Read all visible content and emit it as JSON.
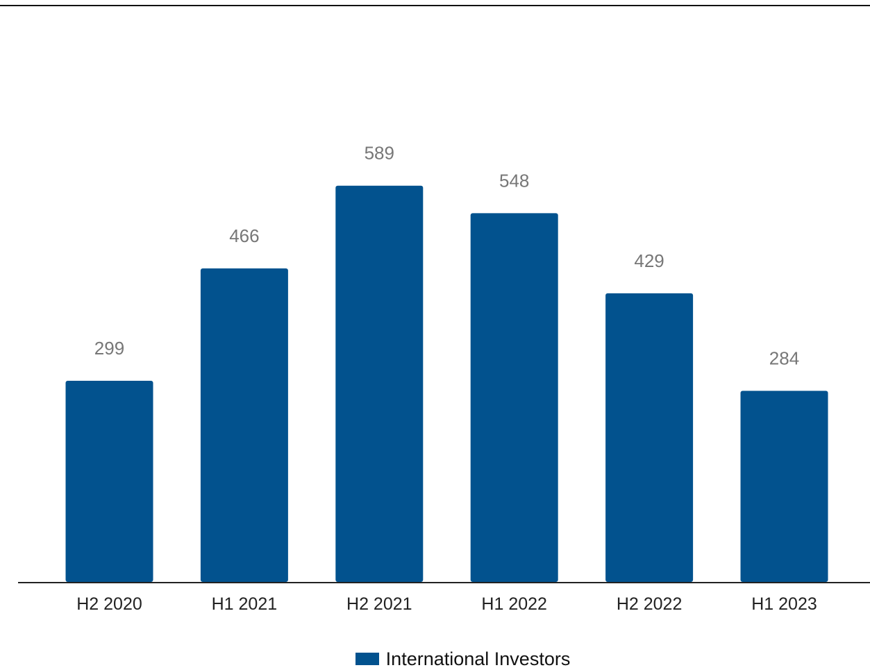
{
  "chart_data": {
    "type": "bar",
    "categories": [
      "H2 2020",
      "H1 2021",
      "H2 2021",
      "H1 2022",
      "H2 2022",
      "H1 2023"
    ],
    "series": [
      {
        "name": "International Investors",
        "values": [
          299,
          466,
          589,
          548,
          429,
          284
        ],
        "color": "#02528e"
      }
    ],
    "data_labels": [
      "299",
      "466",
      "589",
      "548",
      "429",
      "284"
    ],
    "title": "",
    "xlabel": "",
    "ylabel": "",
    "ylim": [
      0,
      765
    ],
    "grid": false,
    "legend_position": "bottom"
  },
  "colors": {
    "bar": "#02528e",
    "axis": "#222222",
    "data_label": "#777777"
  }
}
